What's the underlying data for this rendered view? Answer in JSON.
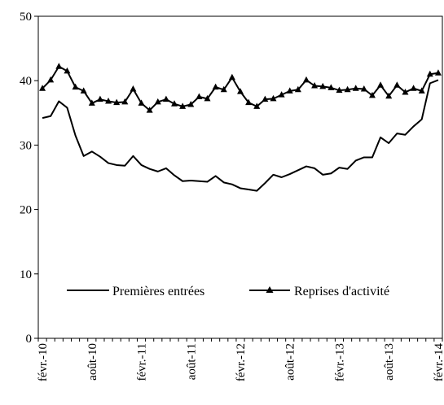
{
  "chart_data": {
    "type": "line",
    "title": "",
    "xlabel": "",
    "ylabel": "",
    "ylim": [
      0,
      50
    ],
    "yticks": [
      0,
      10,
      20,
      30,
      40,
      50
    ],
    "grid": false,
    "legend_position": "lower-center",
    "x": [
      "févr.-10",
      "mars-10",
      "avr.-10",
      "mai-10",
      "juin-10",
      "juil.-10",
      "août-10",
      "sept.-10",
      "oct.-10",
      "nov.-10",
      "déc.-10",
      "janv.-11",
      "févr.-11",
      "mars-11",
      "avr.-11",
      "mai-11",
      "juin-11",
      "juil.-11",
      "août-11",
      "sept.-11",
      "oct.-11",
      "nov.-11",
      "déc.-11",
      "janv.-12",
      "févr.-12",
      "mars-12",
      "avr.-12",
      "mai-12",
      "juin-12",
      "juil.-12",
      "août-12",
      "sept.-12",
      "oct.-12",
      "nov.-12",
      "déc.-12",
      "janv.-13",
      "févr.-13",
      "mars-13",
      "avr.-13",
      "mai-13",
      "juin-13",
      "juil.-13",
      "août-13",
      "sept.-13",
      "oct.-13",
      "nov.-13",
      "déc.-13",
      "janv.-14",
      "févr.-14"
    ],
    "x_tick_labels": [
      "févr.-10",
      "août-10",
      "févr.-11",
      "août-11",
      "févr.-12",
      "août-12",
      "févr.-13",
      "août-13",
      "févr.-14"
    ],
    "x_tick_every": 6,
    "series": [
      {
        "name": "Premières entrées",
        "color": "#000000",
        "marker": "none",
        "values": [
          34.2,
          34.5,
          36.8,
          35.8,
          31.5,
          28.3,
          29.0,
          28.2,
          27.2,
          26.9,
          26.8,
          28.3,
          26.9,
          26.3,
          25.9,
          26.4,
          25.3,
          24.4,
          24.5,
          24.4,
          24.3,
          25.2,
          24.2,
          23.9,
          23.3,
          23.1,
          22.9,
          24.1,
          25.4,
          25.0,
          25.5,
          26.1,
          26.7,
          26.4,
          25.4,
          25.6,
          26.5,
          26.3,
          27.6,
          28.1,
          28.1,
          31.2,
          30.3,
          31.8,
          31.6,
          32.9,
          34.0,
          39.6,
          40.1
        ]
      },
      {
        "name": "Reprises d'activité",
        "color": "#000000",
        "marker": "triangle",
        "values": [
          38.8,
          40.1,
          42.2,
          41.5,
          39.0,
          38.4,
          36.5,
          37.1,
          36.8,
          36.6,
          36.7,
          38.7,
          36.5,
          35.4,
          36.7,
          37.1,
          36.4,
          36.0,
          36.3,
          37.5,
          37.2,
          39.0,
          38.6,
          40.5,
          38.3,
          36.6,
          36.0,
          37.1,
          37.2,
          37.8,
          38.4,
          38.6,
          40.1,
          39.2,
          39.1,
          38.9,
          38.5,
          38.6,
          38.8,
          38.7,
          37.7,
          39.3,
          37.6,
          39.3,
          38.2,
          38.8,
          38.4,
          41.0,
          41.2
        ]
      }
    ]
  }
}
